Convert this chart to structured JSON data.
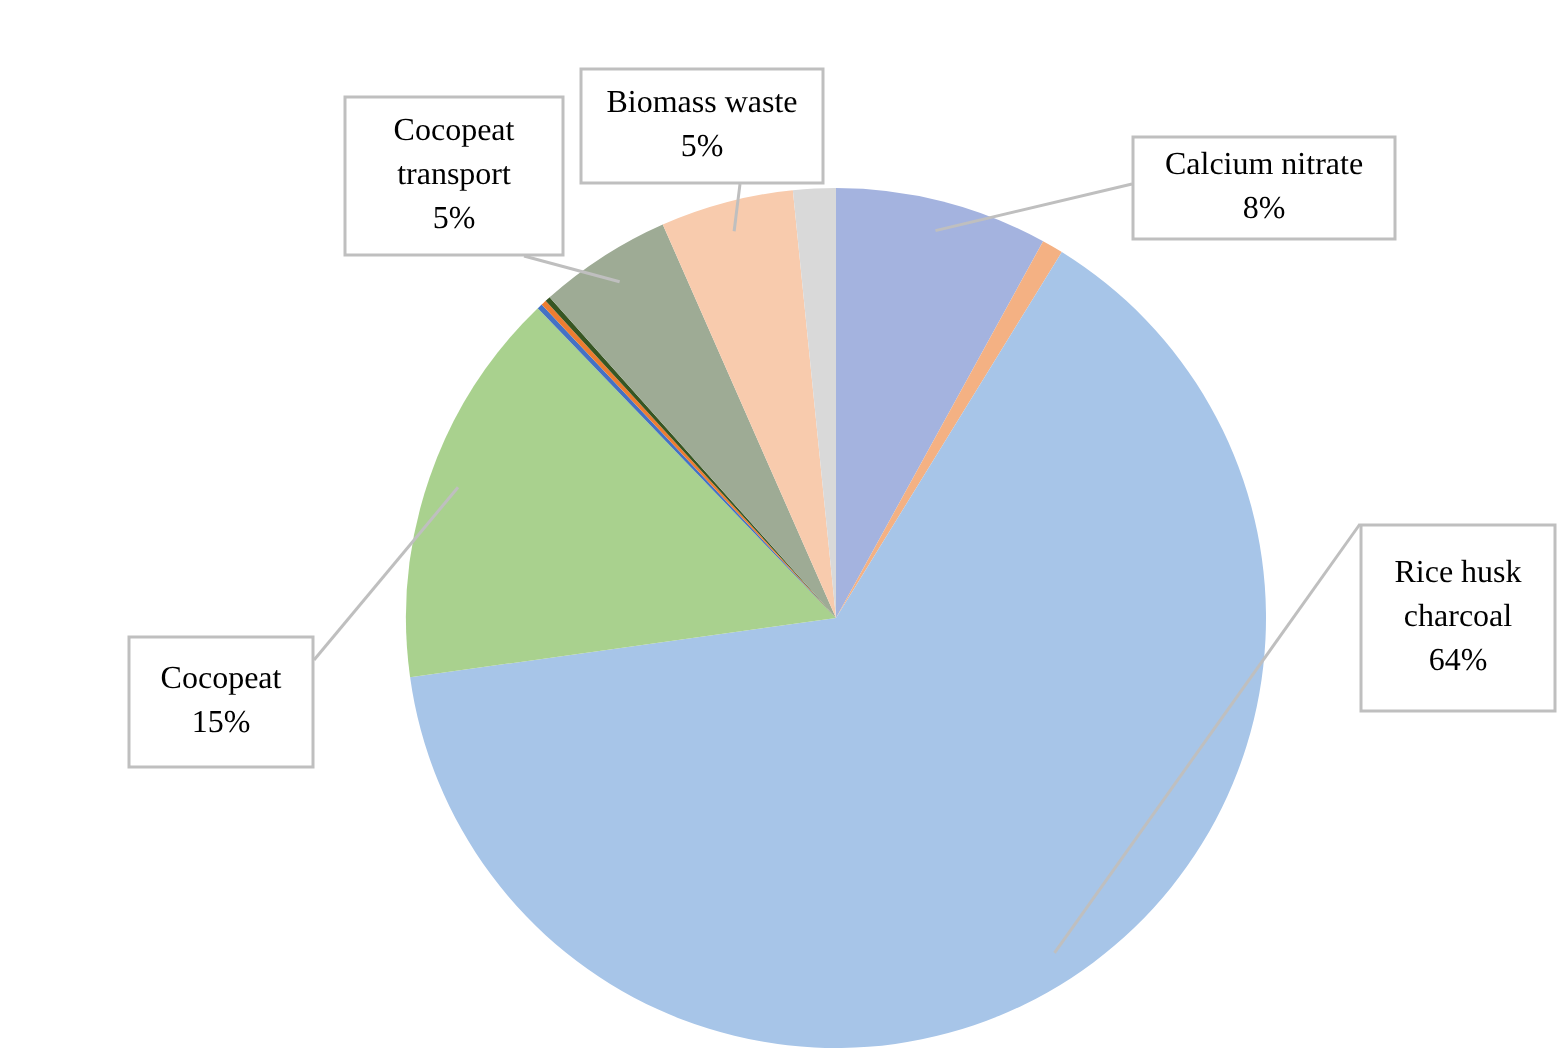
{
  "chart_data": {
    "type": "pie",
    "categories": [
      "Calcium nitrate",
      null,
      "Rice husk charcoal",
      "Cocopeat",
      null,
      null,
      null,
      "Cocopeat transport",
      "Biomass waste",
      null
    ],
    "values": [
      8,
      0.8,
      64,
      15,
      0.2,
      0.2,
      0.2,
      5,
      5,
      1.6
    ],
    "value_labels": [
      "8%",
      null,
      "64%",
      "15%",
      null,
      null,
      null,
      "5%",
      "5%",
      null
    ],
    "colors": [
      "#a4b3df",
      "#f4b183",
      "#a7c5e8",
      "#a9d18e",
      "#4472c4",
      "#ed7d31",
      "#375623",
      "#9eab95",
      "#f8cbad",
      "#d9d9d9"
    ],
    "legend": false
  }
}
